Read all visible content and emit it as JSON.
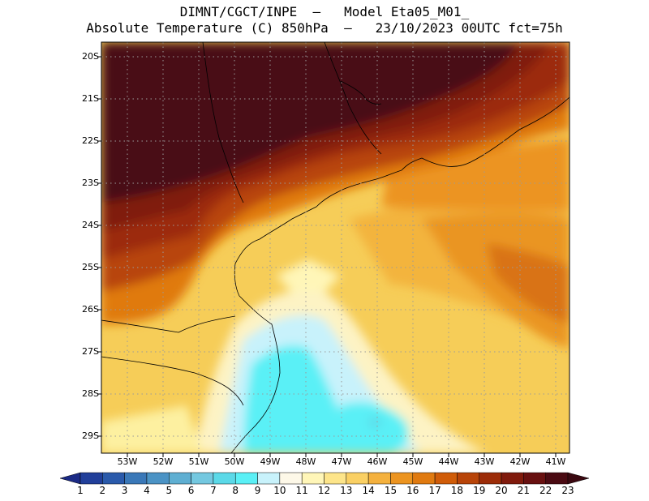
{
  "title": {
    "line1": "DIMNT/CGCT/INPE  –   Model Eta05_M01_",
    "line2": "Absolute Temperature (C) 850hPa  –   23/10/2023 00UTC fct=75h"
  },
  "axes": {
    "lat_labels": [
      "20S",
      "21S",
      "22S",
      "23S",
      "24S",
      "25S",
      "26S",
      "27S",
      "28S",
      "29S"
    ],
    "lon_labels": [
      "53W",
      "52W",
      "51W",
      "50W",
      "49W",
      "48W",
      "47W",
      "46W",
      "45W",
      "44W",
      "43W",
      "42W",
      "41W"
    ]
  },
  "colorbar": {
    "labels": [
      "1",
      "2",
      "3",
      "4",
      "5",
      "6",
      "7",
      "8",
      "9",
      "10",
      "11",
      "12",
      "13",
      "14",
      "15",
      "16",
      "17",
      "18",
      "19",
      "20",
      "21",
      "22",
      "23"
    ],
    "colors": [
      "#1b2a85",
      "#213f9a",
      "#2a5aab",
      "#3a78b8",
      "#4b93c5",
      "#5fafd2",
      "#74c8e0",
      "#5bd9e8",
      "#5af0f6",
      "#c8f2fb",
      "#fdf8e8",
      "#fff6b8",
      "#fde58a",
      "#fad064",
      "#f4b13e",
      "#ec9420",
      "#e07a10",
      "#d05c08",
      "#b84408",
      "#9c2c08",
      "#801a0c",
      "#681010",
      "#4a0a12",
      "#3a0810"
    ]
  },
  "colors": {
    "border": "#000000",
    "grid": "#9a9a9a"
  }
}
